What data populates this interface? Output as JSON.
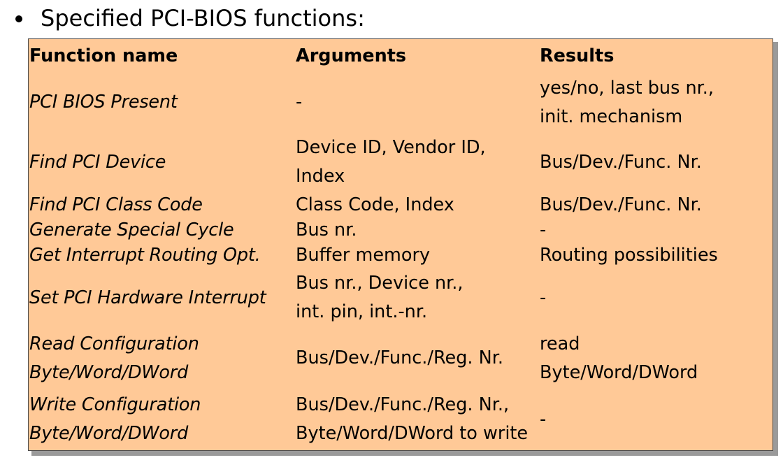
{
  "heading": "Specified PCI-BIOS functions:",
  "colors": {
    "table_bg": "#ffc997",
    "table_border": "#4a4a4a",
    "shadow": "#9a9a9a"
  },
  "table": {
    "headers": {
      "function": "Function name",
      "arguments": "Arguments",
      "results": "Results"
    },
    "rows": [
      {
        "function": [
          "PCI BIOS Present"
        ],
        "arguments": [
          "-"
        ],
        "results": [
          "yes/no, last bus nr.,",
          "init. mechanism"
        ]
      },
      {
        "function": [
          "Find PCI Device"
        ],
        "arguments": [
          "Device ID, Vendor ID,",
          "Index"
        ],
        "results": [
          "Bus/Dev./Func. Nr."
        ]
      },
      {
        "function": [
          "Find PCI Class Code"
        ],
        "arguments": [
          "Class Code, Index"
        ],
        "results": [
          "Bus/Dev./Func. Nr."
        ]
      },
      {
        "function": [
          "Generate Special Cycle"
        ],
        "arguments": [
          "Bus nr."
        ],
        "results": [
          "-"
        ]
      },
      {
        "function": [
          "Get Interrupt Routing Opt."
        ],
        "arguments": [
          "Buffer memory"
        ],
        "results": [
          "Routing possibilities"
        ]
      },
      {
        "function": [
          "Set PCI Hardware Interrupt"
        ],
        "arguments": [
          "Bus nr., Device nr.,",
          "int. pin, int.-nr."
        ],
        "results": [
          "-"
        ]
      },
      {
        "function": [
          "Read Configuration",
          "Byte/Word/DWord"
        ],
        "arguments": [
          "Bus/Dev./Func./Reg. Nr."
        ],
        "results": [
          "read",
          "Byte/Word/DWord"
        ]
      },
      {
        "function": [
          "Write Configuration",
          "Byte/Word/DWord"
        ],
        "arguments": [
          "Bus/Dev./Func./Reg. Nr.,",
          "Byte/Word/DWord to write"
        ],
        "results": [
          "-"
        ]
      }
    ]
  }
}
